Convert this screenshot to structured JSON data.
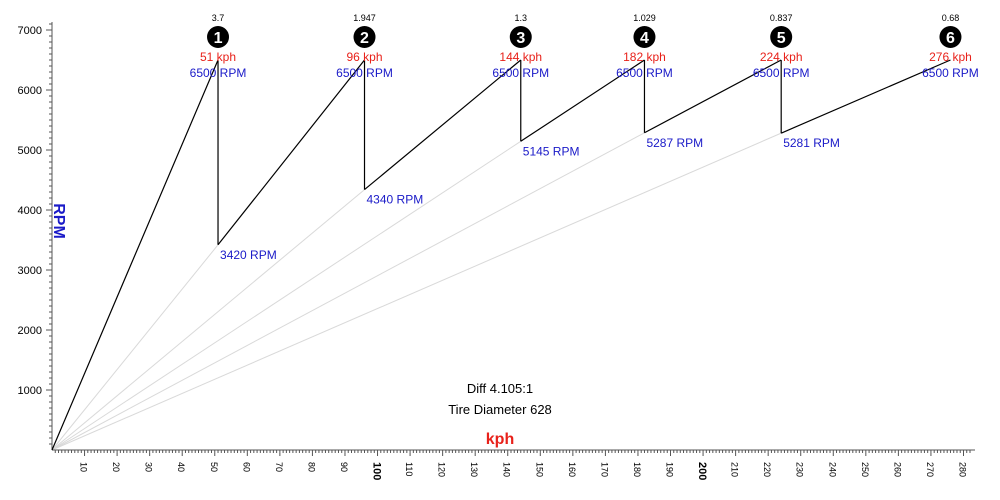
{
  "chart_data": {
    "type": "line",
    "title": "",
    "xlabel": "kph",
    "ylabel": "RPM",
    "xlim": [
      0,
      282
    ],
    "ylim": [
      0,
      7000
    ],
    "x_ticks": [
      10,
      20,
      30,
      40,
      50,
      60,
      70,
      80,
      90,
      100,
      110,
      120,
      130,
      140,
      150,
      160,
      170,
      180,
      190,
      200,
      210,
      220,
      230,
      240,
      250,
      260,
      270,
      280
    ],
    "x_major_ticks": [
      100,
      200
    ],
    "y_ticks": [
      1000,
      2000,
      3000,
      4000,
      5000,
      6000,
      7000
    ],
    "grid": false,
    "annotations": [
      "Diff 4.105:1",
      "Tire Diameter 628"
    ],
    "gears": [
      {
        "number": "1",
        "ratio": "3.7",
        "start_kph": 0,
        "start_rpm": 0,
        "start_label": "",
        "shift_kph": 51,
        "shift_rpm": 6500,
        "kph_label": "51 kph",
        "rpm_label": "6500 RPM"
      },
      {
        "number": "2",
        "ratio": "1.947",
        "start_kph": 51,
        "start_rpm": 3420,
        "start_label": "3420 RPM",
        "shift_kph": 96,
        "shift_rpm": 6500,
        "kph_label": "96 kph",
        "rpm_label": "6500 RPM"
      },
      {
        "number": "3",
        "ratio": "1.3",
        "start_kph": 96,
        "start_rpm": 4340,
        "start_label": "4340 RPM",
        "shift_kph": 144,
        "shift_rpm": 6500,
        "kph_label": "144 kph",
        "rpm_label": "6500 RPM"
      },
      {
        "number": "4",
        "ratio": "1.029",
        "start_kph": 144,
        "start_rpm": 5145,
        "start_label": "5145 RPM",
        "shift_kph": 182,
        "shift_rpm": 6500,
        "kph_label": "182 kph",
        "rpm_label": "6500 RPM"
      },
      {
        "number": "5",
        "ratio": "0.837",
        "start_kph": 182,
        "start_rpm": 5287,
        "start_label": "5287 RPM",
        "shift_kph": 224,
        "shift_rpm": 6500,
        "kph_label": "224 kph",
        "rpm_label": "6500 RPM"
      },
      {
        "number": "6",
        "ratio": "0.68",
        "start_kph": 224,
        "start_rpm": 5281,
        "start_label": "5281 RPM",
        "shift_kph": 276,
        "shift_rpm": 6500,
        "kph_label": "276 kph",
        "rpm_label": "6500 RPM"
      }
    ]
  },
  "colors": {
    "line": "#000000",
    "guide": "#d9d9d9",
    "kph": "#e8211a",
    "rpm": "#1a1ac8",
    "axis": "#555555"
  }
}
